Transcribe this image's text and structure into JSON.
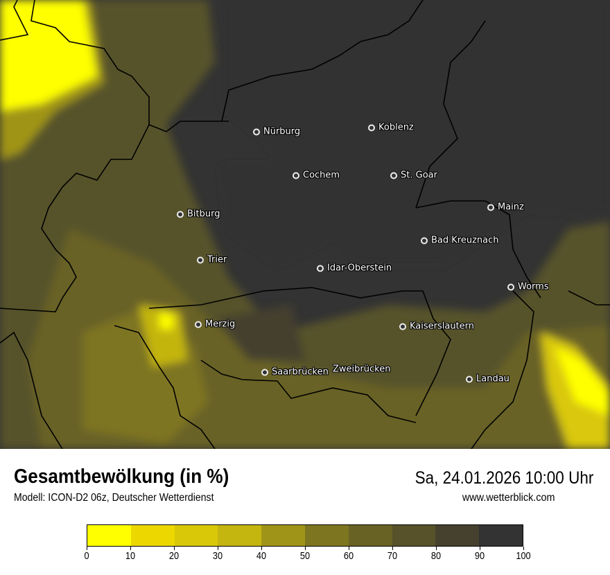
{
  "header": {
    "title": "Gesamtbewölkung (in %)",
    "subtitle": "Modell: ICON-D2 06z, Deutscher Wetterdienst",
    "datetime": "Sa, 24.01.2026 10:00 Uhr",
    "website": "www.wetterblick.com"
  },
  "legend": {
    "unit": "%",
    "ticks": [
      "0",
      "10",
      "20",
      "30",
      "40",
      "50",
      "60",
      "70",
      "80",
      "90",
      "100"
    ],
    "colors": [
      "#ffff00",
      "#ecd800",
      "#d9c808",
      "#c4b50f",
      "#a09418",
      "#7e7520",
      "#696225",
      "#57522a",
      "#45412e",
      "#333333"
    ]
  },
  "cities": [
    {
      "name": "Nürburg",
      "dot": true
    },
    {
      "name": "Koblenz",
      "dot": true
    },
    {
      "name": "Cochem",
      "dot": true
    },
    {
      "name": "St. Goar",
      "dot": true
    },
    {
      "name": "Bitburg",
      "dot": true
    },
    {
      "name": "Mainz",
      "dot": true
    },
    {
      "name": "Bad Kreuznach",
      "dot": true
    },
    {
      "name": "Trier",
      "dot": true
    },
    {
      "name": "Idar-Oberstein",
      "dot": true
    },
    {
      "name": "Worms",
      "dot": true
    },
    {
      "name": "Merzig",
      "dot": true
    },
    {
      "name": "Kaiserslautern",
      "dot": true
    },
    {
      "name": "Saarbrücken",
      "dot": true
    },
    {
      "name": "Zweibrücken",
      "dot": false
    },
    {
      "name": "Landau",
      "dot": true
    }
  ]
}
